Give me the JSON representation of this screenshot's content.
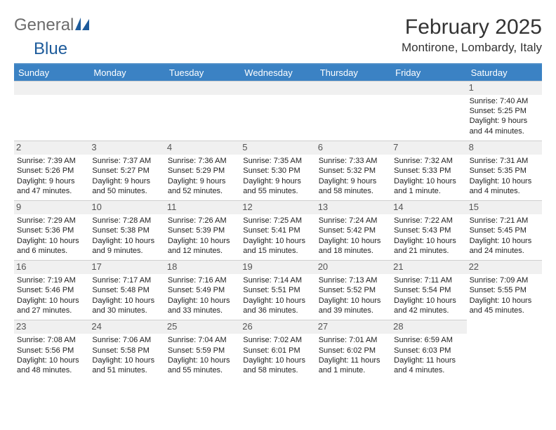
{
  "logo": {
    "word1": "General",
    "word2": "Blue"
  },
  "title": "February 2025",
  "subtitle": "Montirone, Lombardy, Italy",
  "daynames": [
    "Sunday",
    "Monday",
    "Tuesday",
    "Wednesday",
    "Thursday",
    "Friday",
    "Saturday"
  ],
  "colors": {
    "header_bar": "#3b82c4",
    "divider": "#4a8bc6",
    "num_bg": "#f0f0f0",
    "logo_gray": "#6c6c6c",
    "logo_blue": "#1d5b9b"
  },
  "weeks": [
    [
      null,
      null,
      null,
      null,
      null,
      null,
      {
        "n": "1",
        "sunrise": "7:40 AM",
        "sunset": "5:25 PM",
        "dl1": "Daylight: 9 hours",
        "dl2": "and 44 minutes."
      }
    ],
    [
      {
        "n": "2",
        "sunrise": "7:39 AM",
        "sunset": "5:26 PM",
        "dl1": "Daylight: 9 hours",
        "dl2": "and 47 minutes."
      },
      {
        "n": "3",
        "sunrise": "7:37 AM",
        "sunset": "5:27 PM",
        "dl1": "Daylight: 9 hours",
        "dl2": "and 50 minutes."
      },
      {
        "n": "4",
        "sunrise": "7:36 AM",
        "sunset": "5:29 PM",
        "dl1": "Daylight: 9 hours",
        "dl2": "and 52 minutes."
      },
      {
        "n": "5",
        "sunrise": "7:35 AM",
        "sunset": "5:30 PM",
        "dl1": "Daylight: 9 hours",
        "dl2": "and 55 minutes."
      },
      {
        "n": "6",
        "sunrise": "7:33 AM",
        "sunset": "5:32 PM",
        "dl1": "Daylight: 9 hours",
        "dl2": "and 58 minutes."
      },
      {
        "n": "7",
        "sunrise": "7:32 AM",
        "sunset": "5:33 PM",
        "dl1": "Daylight: 10 hours",
        "dl2": "and 1 minute."
      },
      {
        "n": "8",
        "sunrise": "7:31 AM",
        "sunset": "5:35 PM",
        "dl1": "Daylight: 10 hours",
        "dl2": "and 4 minutes."
      }
    ],
    [
      {
        "n": "9",
        "sunrise": "7:29 AM",
        "sunset": "5:36 PM",
        "dl1": "Daylight: 10 hours",
        "dl2": "and 6 minutes."
      },
      {
        "n": "10",
        "sunrise": "7:28 AM",
        "sunset": "5:38 PM",
        "dl1": "Daylight: 10 hours",
        "dl2": "and 9 minutes."
      },
      {
        "n": "11",
        "sunrise": "7:26 AM",
        "sunset": "5:39 PM",
        "dl1": "Daylight: 10 hours",
        "dl2": "and 12 minutes."
      },
      {
        "n": "12",
        "sunrise": "7:25 AM",
        "sunset": "5:41 PM",
        "dl1": "Daylight: 10 hours",
        "dl2": "and 15 minutes."
      },
      {
        "n": "13",
        "sunrise": "7:24 AM",
        "sunset": "5:42 PM",
        "dl1": "Daylight: 10 hours",
        "dl2": "and 18 minutes."
      },
      {
        "n": "14",
        "sunrise": "7:22 AM",
        "sunset": "5:43 PM",
        "dl1": "Daylight: 10 hours",
        "dl2": "and 21 minutes."
      },
      {
        "n": "15",
        "sunrise": "7:21 AM",
        "sunset": "5:45 PM",
        "dl1": "Daylight: 10 hours",
        "dl2": "and 24 minutes."
      }
    ],
    [
      {
        "n": "16",
        "sunrise": "7:19 AM",
        "sunset": "5:46 PM",
        "dl1": "Daylight: 10 hours",
        "dl2": "and 27 minutes."
      },
      {
        "n": "17",
        "sunrise": "7:17 AM",
        "sunset": "5:48 PM",
        "dl1": "Daylight: 10 hours",
        "dl2": "and 30 minutes."
      },
      {
        "n": "18",
        "sunrise": "7:16 AM",
        "sunset": "5:49 PM",
        "dl1": "Daylight: 10 hours",
        "dl2": "and 33 minutes."
      },
      {
        "n": "19",
        "sunrise": "7:14 AM",
        "sunset": "5:51 PM",
        "dl1": "Daylight: 10 hours",
        "dl2": "and 36 minutes."
      },
      {
        "n": "20",
        "sunrise": "7:13 AM",
        "sunset": "5:52 PM",
        "dl1": "Daylight: 10 hours",
        "dl2": "and 39 minutes."
      },
      {
        "n": "21",
        "sunrise": "7:11 AM",
        "sunset": "5:54 PM",
        "dl1": "Daylight: 10 hours",
        "dl2": "and 42 minutes."
      },
      {
        "n": "22",
        "sunrise": "7:09 AM",
        "sunset": "5:55 PM",
        "dl1": "Daylight: 10 hours",
        "dl2": "and 45 minutes."
      }
    ],
    [
      {
        "n": "23",
        "sunrise": "7:08 AM",
        "sunset": "5:56 PM",
        "dl1": "Daylight: 10 hours",
        "dl2": "and 48 minutes."
      },
      {
        "n": "24",
        "sunrise": "7:06 AM",
        "sunset": "5:58 PM",
        "dl1": "Daylight: 10 hours",
        "dl2": "and 51 minutes."
      },
      {
        "n": "25",
        "sunrise": "7:04 AM",
        "sunset": "5:59 PM",
        "dl1": "Daylight: 10 hours",
        "dl2": "and 55 minutes."
      },
      {
        "n": "26",
        "sunrise": "7:02 AM",
        "sunset": "6:01 PM",
        "dl1": "Daylight: 10 hours",
        "dl2": "and 58 minutes."
      },
      {
        "n": "27",
        "sunrise": "7:01 AM",
        "sunset": "6:02 PM",
        "dl1": "Daylight: 11 hours",
        "dl2": "and 1 minute."
      },
      {
        "n": "28",
        "sunrise": "6:59 AM",
        "sunset": "6:03 PM",
        "dl1": "Daylight: 11 hours",
        "dl2": "and 4 minutes."
      },
      null
    ]
  ]
}
